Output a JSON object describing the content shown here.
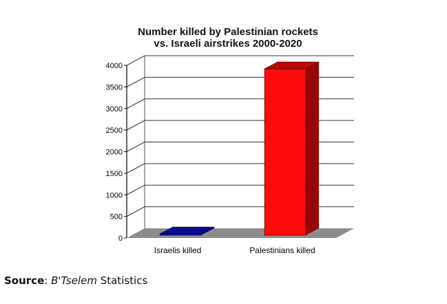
{
  "chart_data": {
    "type": "bar",
    "title": "Number killed by Palestinian rockets vs. Israeli airstrikes 2000-2020",
    "title_lines": [
      "Number killed by Palestinian rockets",
      "vs. Israeli airstrikes 2000-2020"
    ],
    "categories": [
      "Israelis killed",
      "Palestinians killed"
    ],
    "values": [
      20,
      3920
    ],
    "ylim": [
      0,
      4000
    ],
    "yticks": [
      "0",
      "500",
      "1000",
      "1500",
      "2000",
      "2500",
      "3000",
      "3500",
      "4000"
    ],
    "bar_colors": [
      "#0a10b8",
      "#ff0a0a"
    ],
    "grid": true,
    "legend": "none"
  },
  "source": {
    "label": "Source",
    "separator": ": ",
    "italic_name": "B'Tselem",
    "suffix": " Statistics"
  }
}
